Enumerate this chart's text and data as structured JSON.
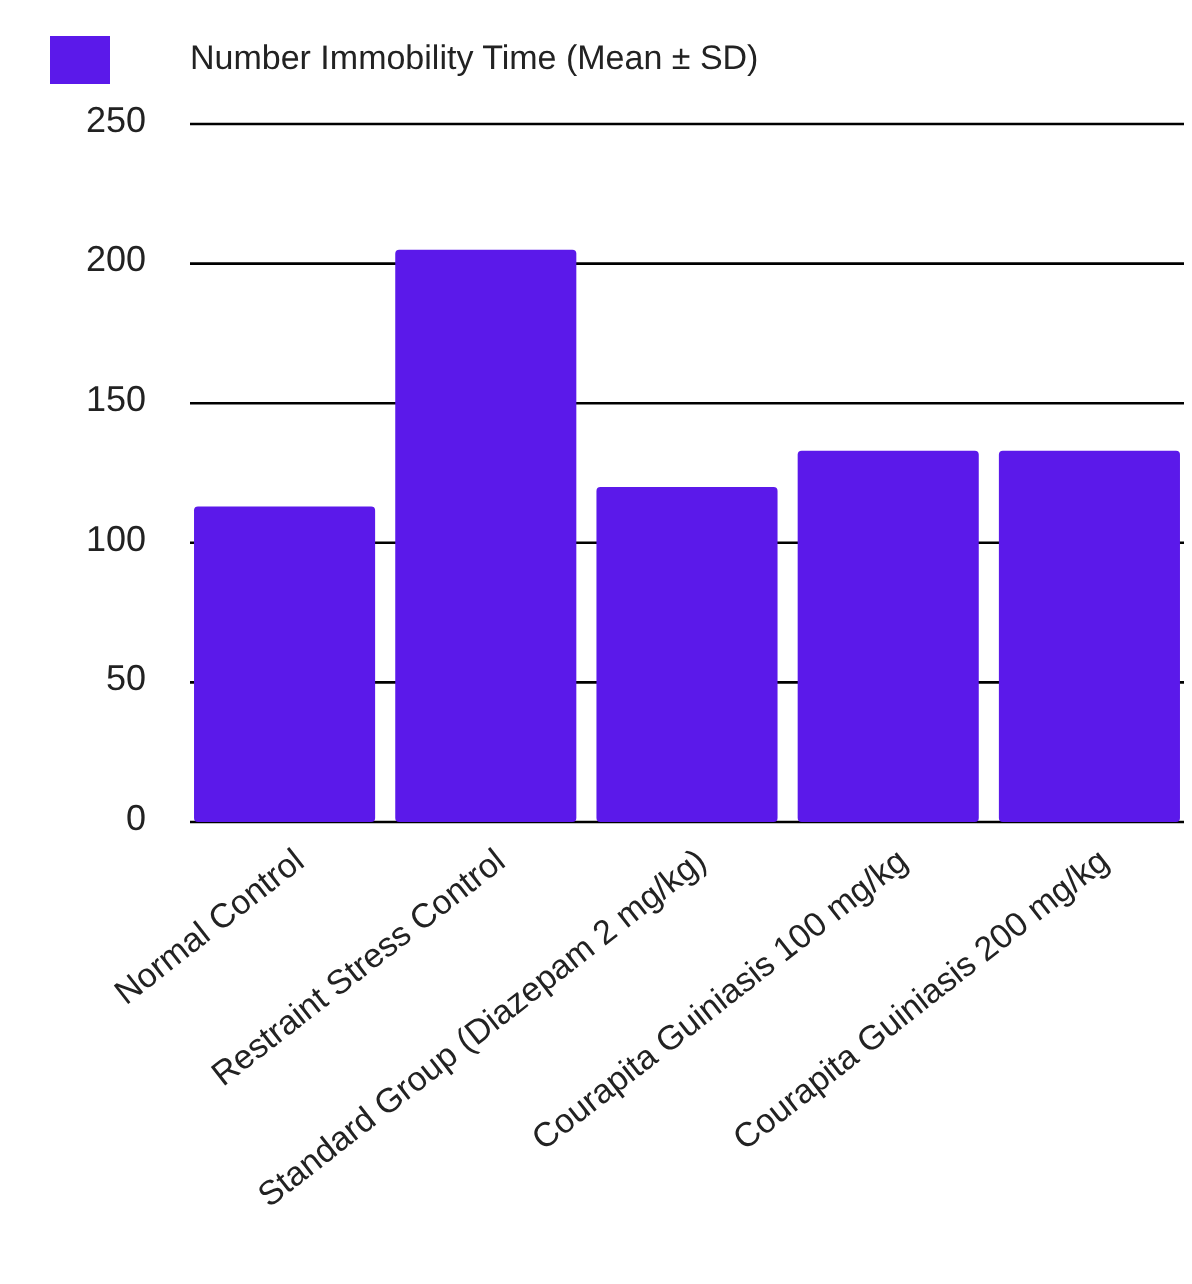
{
  "chart_data": {
    "type": "bar",
    "categories": [
      "Normal Control",
      "Restraint Stress Control",
      "Standard Group (Diazepam 2 mg/kg)",
      "Courapita Guiniasis 100 mg/kg",
      "Courapita Guiniasis 200 mg/kg"
    ],
    "series": [
      {
        "name": "Number Immobility Time (Mean ± SD)",
        "color": "#5b19ea",
        "values": [
          113,
          205,
          120,
          133,
          133
        ]
      }
    ],
    "ylim": [
      0,
      250
    ],
    "yticks": [
      0,
      50,
      100,
      150,
      200,
      250
    ],
    "grid": "y",
    "legend": "top left"
  }
}
